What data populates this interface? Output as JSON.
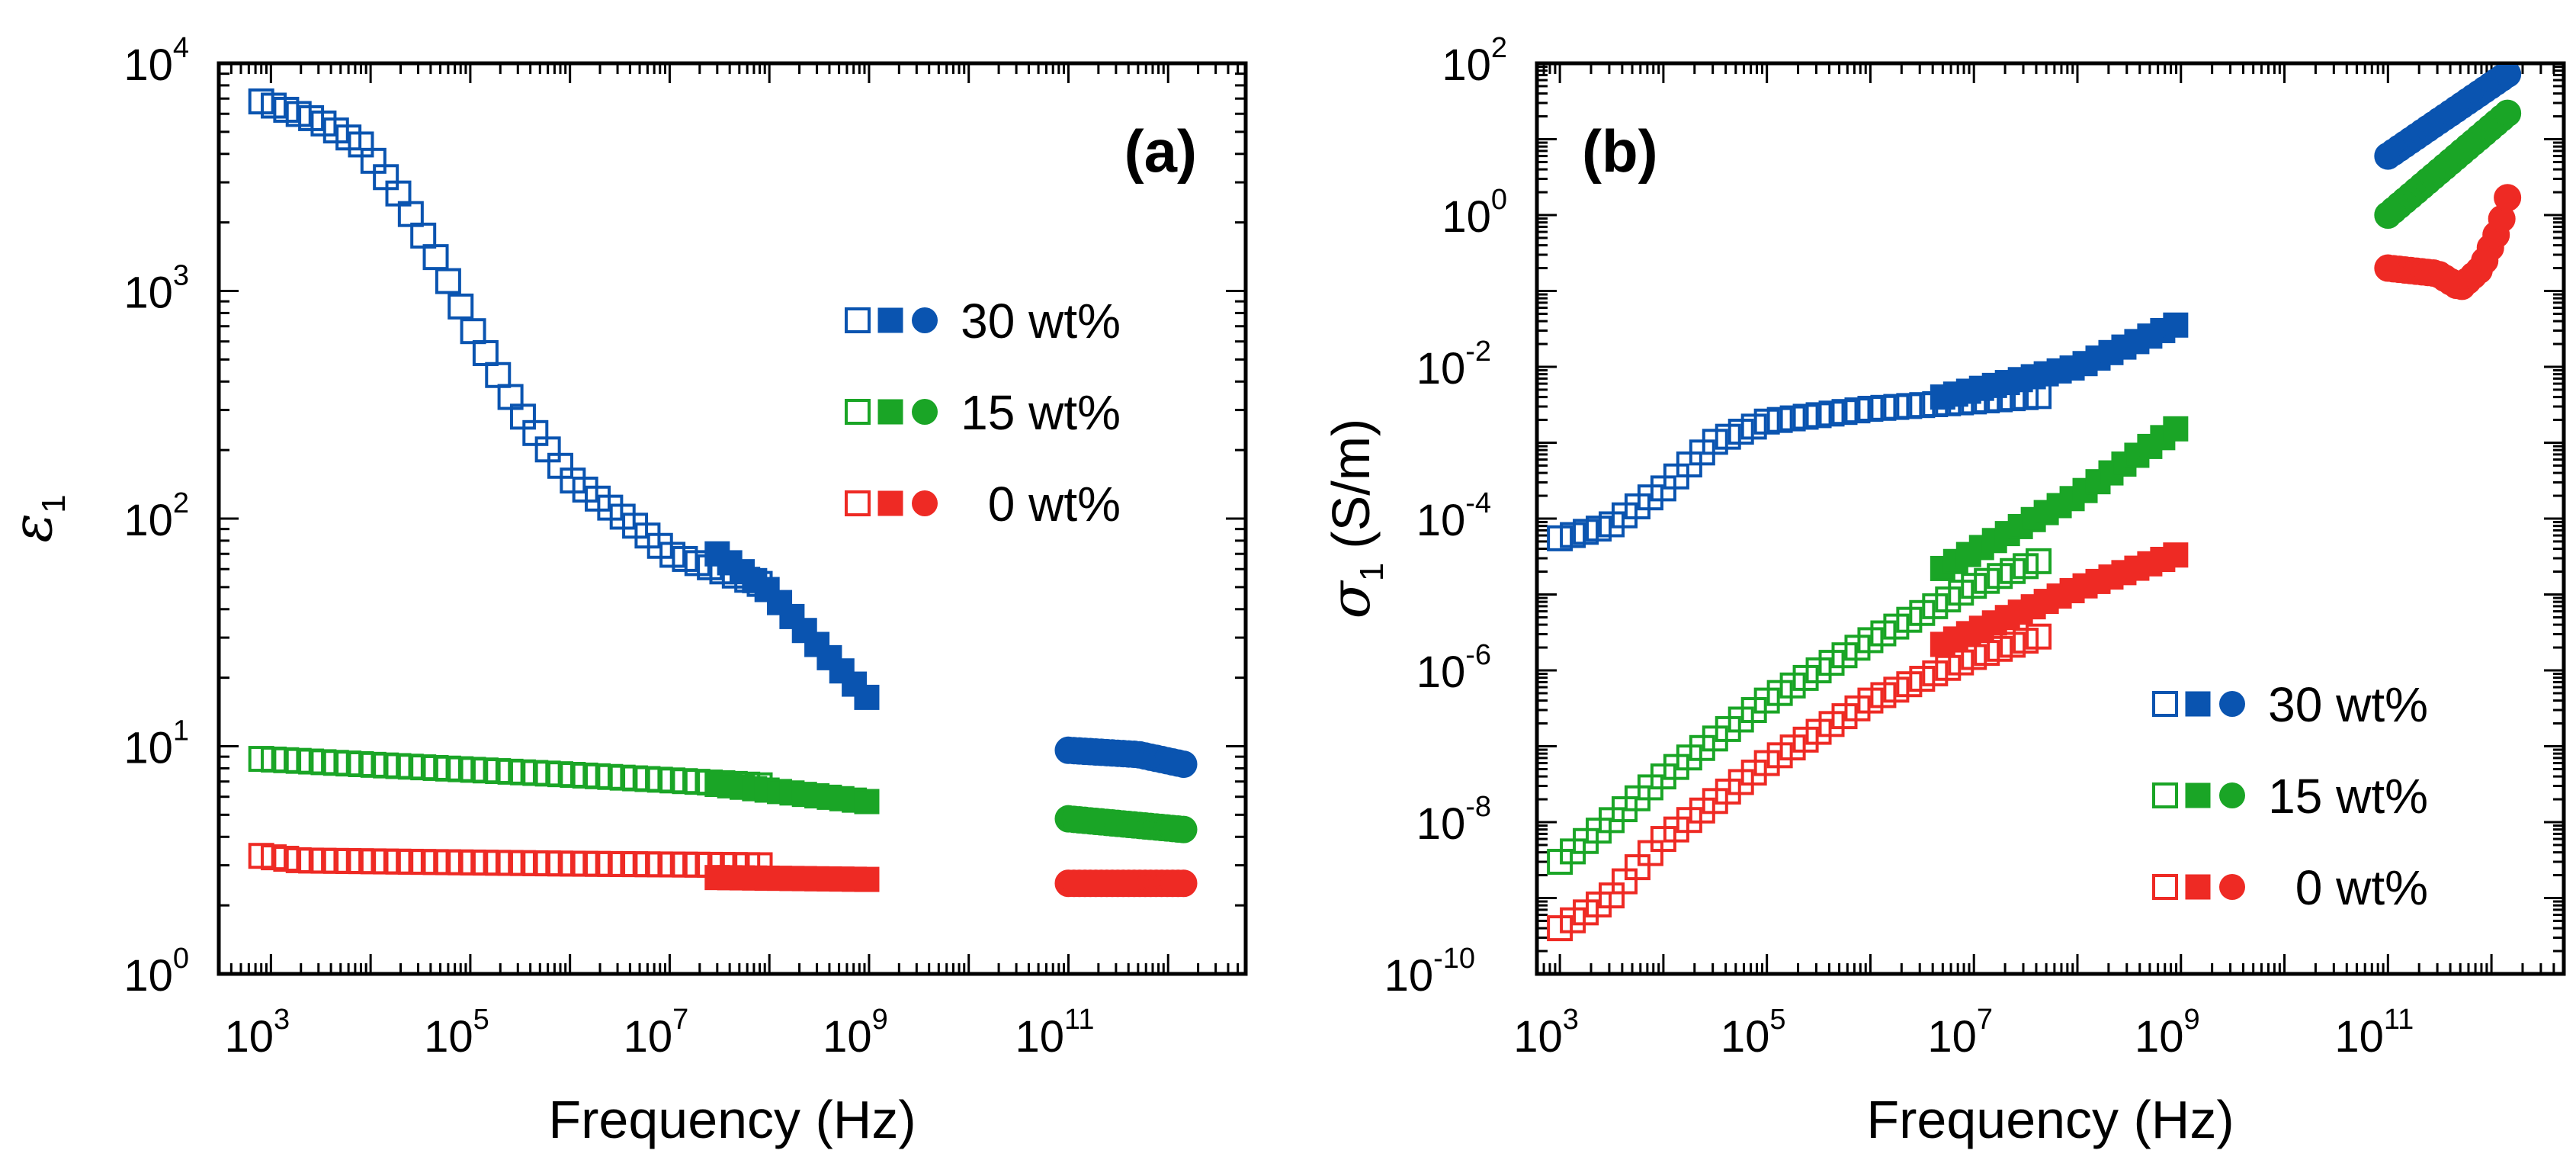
{
  "chart_data": [
    {
      "type": "scatter",
      "panel_label": "(a)",
      "xlabel": "Frequency (Hz)",
      "ylabel_symbol": "ε",
      "ylabel_subscript": "1",
      "ylabel_unit": "",
      "x_scale": "log",
      "y_scale": "log",
      "xlim": [
        300,
        6000000000000.0
      ],
      "ylim": [
        1,
        10000
      ],
      "x_ticks": [
        {
          "base": "10",
          "exp": "3"
        },
        {
          "base": "10",
          "exp": "5"
        },
        {
          "base": "10",
          "exp": "7"
        },
        {
          "base": "10",
          "exp": "9"
        },
        {
          "base": "10",
          "exp": "11"
        }
      ],
      "y_ticks": [
        {
          "base": "10",
          "exp": "0"
        },
        {
          "base": "10",
          "exp": "1"
        },
        {
          "base": "10",
          "exp": "2"
        },
        {
          "base": "10",
          "exp": "3"
        },
        {
          "base": "10",
          "exp": "4"
        }
      ],
      "legend_position": "upper-right",
      "series": [
        {
          "name": "30 wt%",
          "color": "#0a54b0",
          "marker": "open-square",
          "x_range": [
            800,
            100000000.0
          ],
          "curve": [
            [
              800,
              6800
            ],
            [
              3000,
              5600
            ],
            [
              8000,
              4400
            ],
            [
              20000,
              2600
            ],
            [
              50000,
              1300
            ],
            [
              100000,
              700
            ],
            [
              300000,
              300
            ],
            [
              1000000,
              150
            ],
            [
              5000000,
              90
            ],
            [
              10000000,
              70
            ],
            [
              100000000,
              50
            ]
          ]
        },
        {
          "name": "30 wt%",
          "color": "#0a54b0",
          "marker": "filled-square",
          "x_range": [
            30000000.0,
            1000000000.0
          ],
          "curve": [
            [
              30000000,
              70
            ],
            [
              100000000,
              48
            ],
            [
              300000000,
              28
            ],
            [
              1000000000,
              16
            ]
          ]
        },
        {
          "name": "30 wt%",
          "color": "#0a54b0",
          "marker": "filled-circle",
          "x_range": [
            100000000000.0,
            1500000000000.0
          ],
          "curve": [
            [
              100000000000,
              9.6
            ],
            [
              500000000000,
              9.2
            ],
            [
              1500000000000,
              8.3
            ]
          ]
        },
        {
          "name": "15 wt%",
          "color": "#1aa526",
          "marker": "open-square",
          "x_range": [
            800,
            100000000.0
          ],
          "curve": [
            [
              800,
              8.8
            ],
            [
              10000,
              8.3
            ],
            [
              1000000,
              7.5
            ],
            [
              100000000,
              6.7
            ]
          ]
        },
        {
          "name": "15 wt%",
          "color": "#1aa526",
          "marker": "filled-square",
          "x_range": [
            30000000.0,
            1000000000.0
          ],
          "curve": [
            [
              30000000,
              6.8
            ],
            [
              1000000000,
              5.7
            ]
          ]
        },
        {
          "name": "15 wt%",
          "color": "#1aa526",
          "marker": "filled-circle",
          "x_range": [
            100000000000.0,
            1500000000000.0
          ],
          "curve": [
            [
              100000000000,
              4.8
            ],
            [
              1500000000000,
              4.3
            ]
          ]
        },
        {
          "name": "0 wt%",
          "color": "#ee2a24",
          "marker": "open-square",
          "x_range": [
            800,
            100000000.0
          ],
          "curve": [
            [
              800,
              3.3
            ],
            [
              2000,
              3.15
            ],
            [
              1000000,
              3.05
            ],
            [
              100000000,
              3.0
            ]
          ]
        },
        {
          "name": "0 wt%",
          "color": "#ee2a24",
          "marker": "filled-square",
          "x_range": [
            30000000.0,
            1000000000.0
          ],
          "curve": [
            [
              30000000,
              2.65
            ],
            [
              1000000000,
              2.6
            ]
          ]
        },
        {
          "name": "0 wt%",
          "color": "#ee2a24",
          "marker": "filled-circle",
          "x_range": [
            100000000000.0,
            1500000000000.0
          ],
          "curve": [
            [
              100000000000,
              2.5
            ],
            [
              1500000000000,
              2.5
            ]
          ]
        }
      ]
    },
    {
      "type": "scatter",
      "panel_label": "(b)",
      "xlabel": "Frequency (Hz)",
      "ylabel_symbol": "σ",
      "ylabel_subscript": "1",
      "ylabel_unit": "(S/m)",
      "x_scale": "log",
      "y_scale": "log",
      "xlim": [
        600,
        5000000000000.0
      ],
      "ylim": [
        1e-10,
        100
      ],
      "x_ticks": [
        {
          "base": "10",
          "exp": "3"
        },
        {
          "base": "10",
          "exp": "5"
        },
        {
          "base": "10",
          "exp": "7"
        },
        {
          "base": "10",
          "exp": "9"
        },
        {
          "base": "10",
          "exp": "11"
        }
      ],
      "y_ticks": [
        {
          "base": "10",
          "exp": "-10"
        },
        {
          "base": "10",
          "exp": "-8"
        },
        {
          "base": "10",
          "exp": "-6"
        },
        {
          "base": "10",
          "exp": "-4"
        },
        {
          "base": "10",
          "exp": "-2"
        },
        {
          "base": "10",
          "exp": "0"
        },
        {
          "base": "10",
          "exp": "2"
        }
      ],
      "legend_position": "lower-right",
      "series": [
        {
          "name": "30 wt%",
          "color": "#0a54b0",
          "marker": "open-square",
          "x_range": [
            1000,
            50000000.0
          ],
          "curve": [
            [
              1000,
              5.5e-05
            ],
            [
              3000,
              8e-05
            ],
            [
              10000,
              0.00025
            ],
            [
              30000,
              0.001
            ],
            [
              100000,
              0.0019
            ],
            [
              1000000,
              0.0028
            ],
            [
              10000000,
              0.0035
            ],
            [
              50000000,
              0.0042
            ]
          ]
        },
        {
          "name": "30 wt%",
          "color": "#0a54b0",
          "marker": "filled-square",
          "x_range": [
            5000000.0,
            1000000000.0
          ],
          "curve": [
            [
              5000000,
              0.004
            ],
            [
              100000000,
              0.01
            ],
            [
              1000000000,
              0.038
            ]
          ]
        },
        {
          "name": "30 wt%",
          "color": "#0a54b0",
          "marker": "filled-circle",
          "x_range": [
            100000000000.0,
            1600000000000.0
          ],
          "curve": [
            [
              100000000000,
              6
            ],
            [
              1600000000000,
              80
            ]
          ]
        },
        {
          "name": "15 wt%",
          "color": "#1aa526",
          "marker": "open-square",
          "x_range": [
            1000,
            50000000.0
          ],
          "curve": [
            [
              1000,
              3e-09
            ],
            [
              3000,
              1e-08
            ],
            [
              10000,
              4e-08
            ],
            [
              100000,
              4e-07
            ],
            [
              1000000,
              2.5e-06
            ],
            [
              10000000,
              1.3e-05
            ],
            [
              50000000,
              3e-05
            ]
          ]
        },
        {
          "name": "15 wt%",
          "color": "#1aa526",
          "marker": "filled-square",
          "x_range": [
            5000000.0,
            1000000000.0
          ],
          "curve": [
            [
              5000000,
              2.2e-05
            ],
            [
              100000000,
              0.0002
            ],
            [
              1000000000,
              0.0017
            ]
          ]
        },
        {
          "name": "15 wt%",
          "color": "#1aa526",
          "marker": "filled-circle",
          "x_range": [
            100000000000.0,
            1600000000000.0
          ],
          "curve": [
            [
              100000000000,
              1
            ],
            [
              1600000000000,
              25
            ]
          ]
        },
        {
          "name": "0 wt%",
          "color": "#ee2a24",
          "marker": "open-square",
          "x_range": [
            1000,
            50000000.0
          ],
          "curve": [
            [
              1000,
              4e-10
            ],
            [
              3000,
              1e-09
            ],
            [
              10000,
              6e-09
            ],
            [
              100000,
              6e-08
            ],
            [
              1000000,
              4e-07
            ],
            [
              10000000,
              1.5e-06
            ],
            [
              50000000,
              3e-06
            ]
          ]
        },
        {
          "name": "0 wt%",
          "color": "#ee2a24",
          "marker": "filled-square",
          "x_range": [
            5000000.0,
            1000000000.0
          ],
          "curve": [
            [
              5000000,
              2.2e-06
            ],
            [
              100000000,
              1.2e-05
            ],
            [
              1000000000,
              3.5e-05
            ]
          ]
        },
        {
          "name": "0 wt%",
          "color": "#ee2a24",
          "marker": "filled-circle",
          "x_range": [
            100000000000.0,
            1600000000000.0
          ],
          "curve": [
            [
              100000000000,
              0.2
            ],
            [
              300000000000,
              0.17
            ],
            [
              500000000000,
              0.11
            ],
            [
              800000000000,
              0.2
            ],
            [
              1200000000000,
              0.7
            ],
            [
              1600000000000,
              3
            ]
          ]
        }
      ]
    }
  ]
}
